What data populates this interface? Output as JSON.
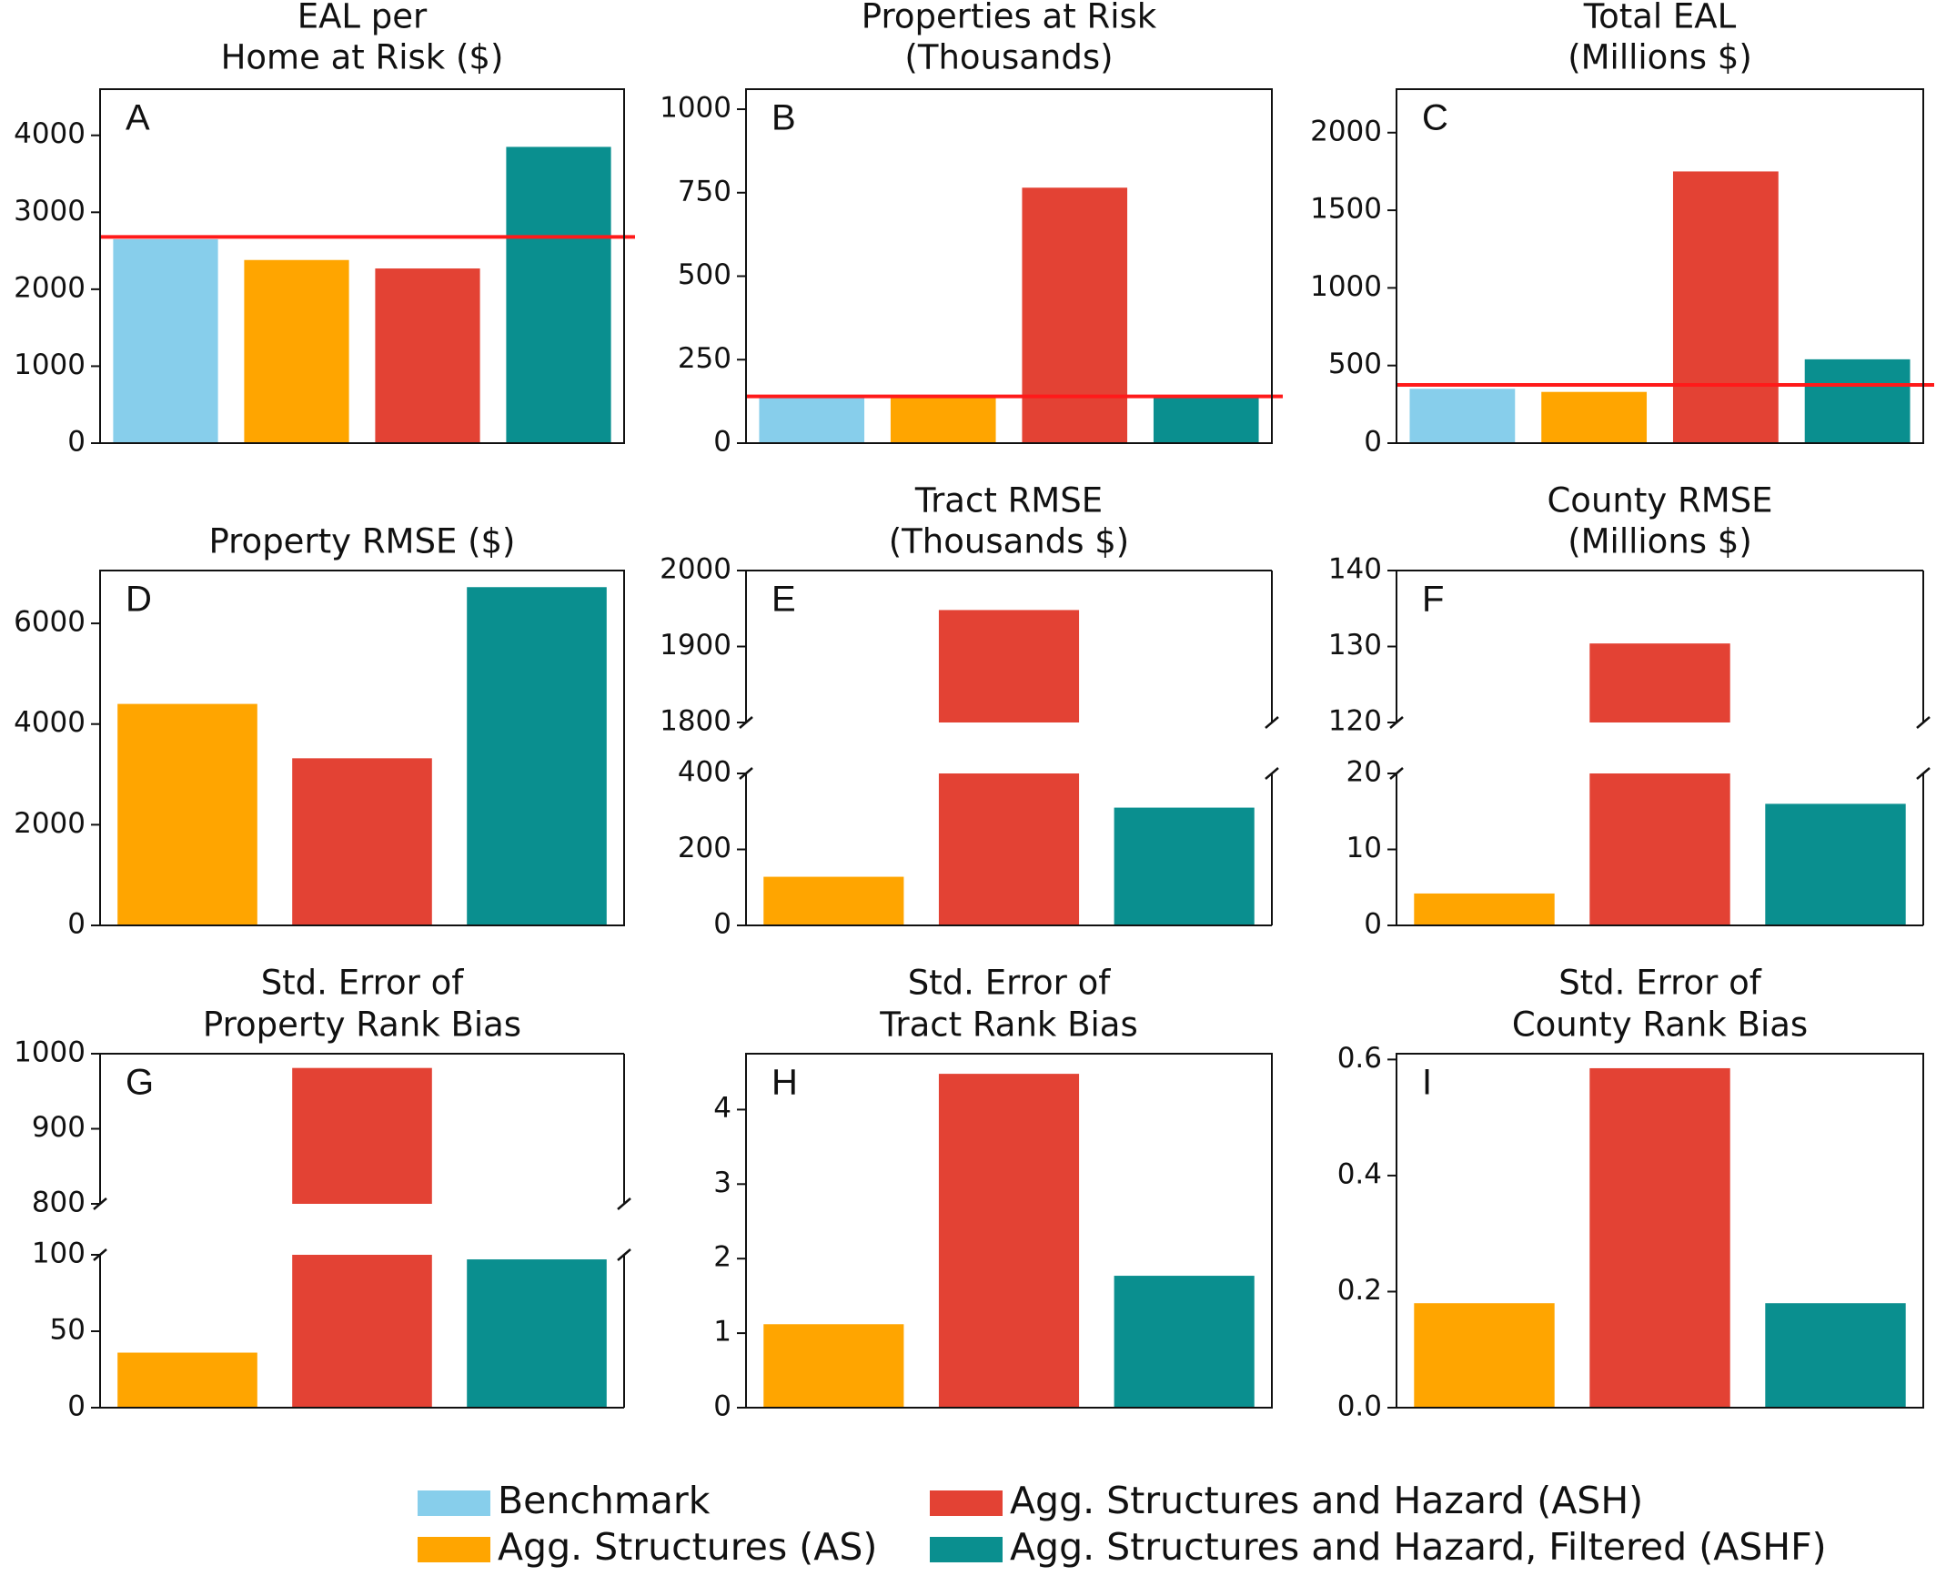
{
  "legend": [
    {
      "key": "benchmark",
      "label": "Benchmark",
      "color": "#87CEEB"
    },
    {
      "key": "as",
      "label": "Agg. Structures (AS)",
      "color": "#FFA500"
    },
    {
      "key": "ash",
      "label": "Agg. Structures and Hazard (ASH)",
      "color": "#E34234"
    },
    {
      "key": "ashf",
      "label": "Agg. Structures and Hazard, Filtered (ASHF)",
      "color": "#0A8F8F"
    }
  ],
  "chart_data": [
    {
      "id": "A",
      "type": "bar",
      "title": [
        "EAL per",
        "Home at Risk ($)"
      ],
      "series": [
        "benchmark",
        "as",
        "ash",
        "ashf"
      ],
      "values": [
        2650,
        2380,
        2270,
        3850
      ],
      "ylim": [
        0,
        4600
      ],
      "yticks": [
        0,
        1000,
        2000,
        3000,
        4000
      ],
      "reference_line": 2680
    },
    {
      "id": "B",
      "type": "bar",
      "title": [
        "Properties at Risk",
        "(Thousands)"
      ],
      "series": [
        "benchmark",
        "as",
        "ash",
        "ashf"
      ],
      "values": [
        135,
        135,
        765,
        135
      ],
      "ylim": [
        0,
        1060
      ],
      "yticks": [
        0,
        250,
        500,
        750,
        1000
      ],
      "reference_line": 140
    },
    {
      "id": "C",
      "type": "bar",
      "title": [
        "Total EAL",
        "(Millions $)"
      ],
      "series": [
        "benchmark",
        "as",
        "ash",
        "ashf"
      ],
      "values": [
        350,
        330,
        1750,
        540
      ],
      "ylim": [
        0,
        2280
      ],
      "yticks": [
        0,
        500,
        1000,
        1500,
        2000
      ],
      "reference_line": 375
    },
    {
      "id": "D",
      "type": "bar",
      "title": [
        "Property RMSE ($)"
      ],
      "series": [
        "as",
        "ash",
        "ashf"
      ],
      "values": [
        4400,
        3320,
        6720
      ],
      "ylim": [
        0,
        7050
      ],
      "yticks": [
        0,
        2000,
        4000,
        6000
      ]
    },
    {
      "id": "E",
      "type": "bar",
      "title": [
        "Tract RMSE",
        "(Thousands $)"
      ],
      "series": [
        "as",
        "ash",
        "ashf"
      ],
      "values": [
        128,
        1948,
        310
      ],
      "broken_axis": {
        "lower": [
          0,
          400
        ],
        "upper": [
          1800,
          2000
        ]
      },
      "yticks_lower": [
        0,
        200,
        400
      ],
      "yticks_upper": [
        1800,
        1900,
        2000
      ]
    },
    {
      "id": "F",
      "type": "bar",
      "title": [
        "County RMSE",
        "(Millions $)"
      ],
      "series": [
        "as",
        "ash",
        "ashf"
      ],
      "values": [
        4.2,
        130.4,
        16
      ],
      "broken_axis": {
        "lower": [
          0,
          20
        ],
        "upper": [
          120,
          140
        ]
      },
      "yticks_lower": [
        0,
        10,
        20
      ],
      "yticks_upper": [
        120,
        130,
        140
      ]
    },
    {
      "id": "G",
      "type": "bar",
      "title": [
        "Std. Error of",
        "Property Rank Bias"
      ],
      "series": [
        "as",
        "ash",
        "ashf"
      ],
      "values": [
        36,
        981,
        97
      ],
      "broken_axis": {
        "lower": [
          0,
          100
        ],
        "upper": [
          800,
          1000
        ]
      },
      "yticks_lower": [
        0,
        50,
        100
      ],
      "yticks_upper": [
        800,
        900,
        1000
      ]
    },
    {
      "id": "H",
      "type": "bar",
      "title": [
        "Std. Error of",
        "Tract Rank Bias"
      ],
      "series": [
        "as",
        "ash",
        "ashf"
      ],
      "values": [
        1.12,
        4.48,
        1.77
      ],
      "ylim": [
        0,
        4.75
      ],
      "yticks": [
        0,
        1,
        2,
        3,
        4
      ]
    },
    {
      "id": "I",
      "type": "bar",
      "title": [
        "Std. Error of",
        "County Rank Bias"
      ],
      "series": [
        "as",
        "ash",
        "ashf"
      ],
      "values": [
        0.18,
        0.585,
        0.18
      ],
      "ylim": [
        0,
        0.61
      ],
      "yticks": [
        0.0,
        0.2,
        0.4,
        0.6
      ],
      "tick_decimals": 1
    }
  ]
}
